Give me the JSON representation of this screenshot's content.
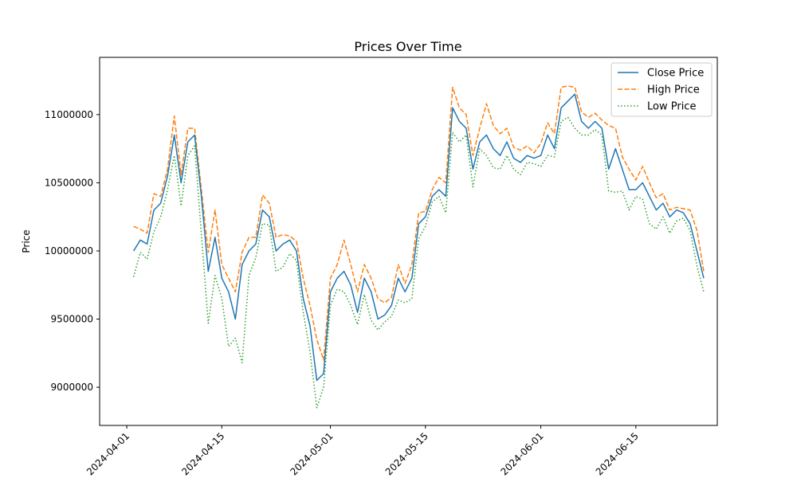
{
  "chart_data": {
    "type": "line",
    "title": "Prices Over Time",
    "xlabel": "",
    "ylabel": "Price",
    "xlim": [
      "2024-03-28",
      "2024-06-27"
    ],
    "ylim": [
      8720000,
      11420000
    ],
    "grid": false,
    "legend_position": "top-right",
    "x_ticks": [
      "2024-04-01",
      "2024-04-15",
      "2024-05-01",
      "2024-05-15",
      "2024-06-01",
      "2024-06-15"
    ],
    "y_ticks": [
      9000000,
      9500000,
      10000000,
      10500000,
      11000000
    ],
    "y_tick_labels": [
      "9000000",
      "9500000",
      "10000000",
      "10500000",
      "11000000"
    ],
    "colors": {
      "close": "#1f77b4",
      "high": "#ff7f0e",
      "low": "#2ca02c"
    },
    "dates": [
      "2024-04-02",
      "2024-04-03",
      "2024-04-04",
      "2024-04-05",
      "2024-04-06",
      "2024-04-07",
      "2024-04-08",
      "2024-04-09",
      "2024-04-10",
      "2024-04-11",
      "2024-04-12",
      "2024-04-13",
      "2024-04-14",
      "2024-04-15",
      "2024-04-16",
      "2024-04-17",
      "2024-04-18",
      "2024-04-19",
      "2024-04-20",
      "2024-04-21",
      "2024-04-22",
      "2024-04-23",
      "2024-04-24",
      "2024-04-25",
      "2024-04-26",
      "2024-04-27",
      "2024-04-28",
      "2024-04-29",
      "2024-04-30",
      "2024-05-01",
      "2024-05-02",
      "2024-05-03",
      "2024-05-04",
      "2024-05-05",
      "2024-05-06",
      "2024-05-07",
      "2024-05-08",
      "2024-05-09",
      "2024-05-10",
      "2024-05-11",
      "2024-05-12",
      "2024-05-13",
      "2024-05-14",
      "2024-05-15",
      "2024-05-16",
      "2024-05-17",
      "2024-05-18",
      "2024-05-19",
      "2024-05-20",
      "2024-05-21",
      "2024-05-22",
      "2024-05-23",
      "2024-05-24",
      "2024-05-25",
      "2024-05-26",
      "2024-05-27",
      "2024-05-28",
      "2024-05-29",
      "2024-05-30",
      "2024-05-31",
      "2024-06-01",
      "2024-06-02",
      "2024-06-03",
      "2024-06-04",
      "2024-06-05",
      "2024-06-06",
      "2024-06-07",
      "2024-06-08",
      "2024-06-09",
      "2024-06-10",
      "2024-06-11",
      "2024-06-12",
      "2024-06-13",
      "2024-06-14",
      "2024-06-15",
      "2024-06-16",
      "2024-06-17",
      "2024-06-18",
      "2024-06-19",
      "2024-06-20",
      "2024-06-21",
      "2024-06-22",
      "2024-06-23",
      "2024-06-24",
      "2024-06-25"
    ],
    "series": [
      {
        "name": "Close Price",
        "key": "close",
        "values": [
          10000000,
          10080000,
          10050000,
          10300000,
          10350000,
          10550000,
          10850000,
          10500000,
          10800000,
          10850000,
          10400000,
          9850000,
          10100000,
          9800000,
          9700000,
          9500000,
          9900000,
          10000000,
          10050000,
          10300000,
          10250000,
          10000000,
          10050000,
          10080000,
          10000000,
          9650000,
          9450000,
          9050000,
          9100000,
          9700000,
          9800000,
          9850000,
          9750000,
          9550000,
          9800000,
          9700000,
          9500000,
          9530000,
          9600000,
          9800000,
          9700000,
          9800000,
          10200000,
          10250000,
          10400000,
          10450000,
          10400000,
          11050000,
          10950000,
          10900000,
          10600000,
          10800000,
          10850000,
          10750000,
          10700000,
          10800000,
          10680000,
          10650000,
          10700000,
          10680000,
          10700000,
          10850000,
          10750000,
          11050000,
          11100000,
          11150000,
          10950000,
          10900000,
          10950000,
          10900000,
          10600000,
          10750000,
          10600000,
          10450000,
          10450000,
          10500000,
          10400000,
          10300000,
          10350000,
          10250000,
          10300000,
          10280000,
          10200000,
          10000000,
          9800000
        ]
      },
      {
        "name": "High Price",
        "key": "high",
        "values": [
          10180000,
          10160000,
          10130000,
          10420000,
          10400000,
          10600000,
          10990000,
          10560000,
          10900000,
          10900000,
          10450000,
          9990000,
          10300000,
          9900000,
          9800000,
          9700000,
          9990000,
          10100000,
          10100000,
          10410000,
          10350000,
          10100000,
          10120000,
          10110000,
          10070000,
          9800000,
          9600000,
          9350000,
          9200000,
          9800000,
          9900000,
          10080000,
          9900000,
          9700000,
          9900000,
          9800000,
          9650000,
          9620000,
          9660000,
          9900000,
          9760000,
          9900000,
          10280000,
          10290000,
          10450000,
          10540000,
          10500000,
          11200000,
          11050000,
          11000000,
          10700000,
          10900000,
          11080000,
          10920000,
          10860000,
          10900000,
          10760000,
          10740000,
          10770000,
          10720000,
          10790000,
          10940000,
          10860000,
          11200000,
          11210000,
          11200000,
          11020000,
          10980000,
          11010000,
          10960000,
          10920000,
          10900000,
          10690000,
          10600000,
          10520000,
          10620000,
          10500000,
          10390000,
          10420000,
          10300000,
          10320000,
          10310000,
          10300000,
          10150000,
          9850000
        ]
      },
      {
        "name": "Low Price",
        "key": "low",
        "values": [
          9810000,
          9990000,
          9940000,
          10140000,
          10250000,
          10450000,
          10700000,
          10330000,
          10700000,
          10770000,
          10120000,
          9470000,
          9820000,
          9650000,
          9300000,
          9360000,
          9180000,
          9820000,
          9950000,
          10200000,
          10190000,
          9850000,
          9880000,
          9980000,
          9930000,
          9550000,
          9260000,
          8850000,
          9000000,
          9600000,
          9720000,
          9700000,
          9600000,
          9460000,
          9680000,
          9490000,
          9420000,
          9480000,
          9520000,
          9640000,
          9620000,
          9650000,
          10090000,
          10180000,
          10360000,
          10400000,
          10280000,
          10870000,
          10800000,
          10850000,
          10470000,
          10750000,
          10700000,
          10610000,
          10600000,
          10700000,
          10600000,
          10560000,
          10650000,
          10640000,
          10620000,
          10700000,
          10690000,
          10950000,
          10980000,
          10900000,
          10850000,
          10850000,
          10890000,
          10850000,
          10440000,
          10430000,
          10440000,
          10300000,
          10400000,
          10380000,
          10200000,
          10160000,
          10250000,
          10130000,
          10220000,
          10240000,
          10150000,
          9890000,
          9700000
        ]
      }
    ]
  }
}
